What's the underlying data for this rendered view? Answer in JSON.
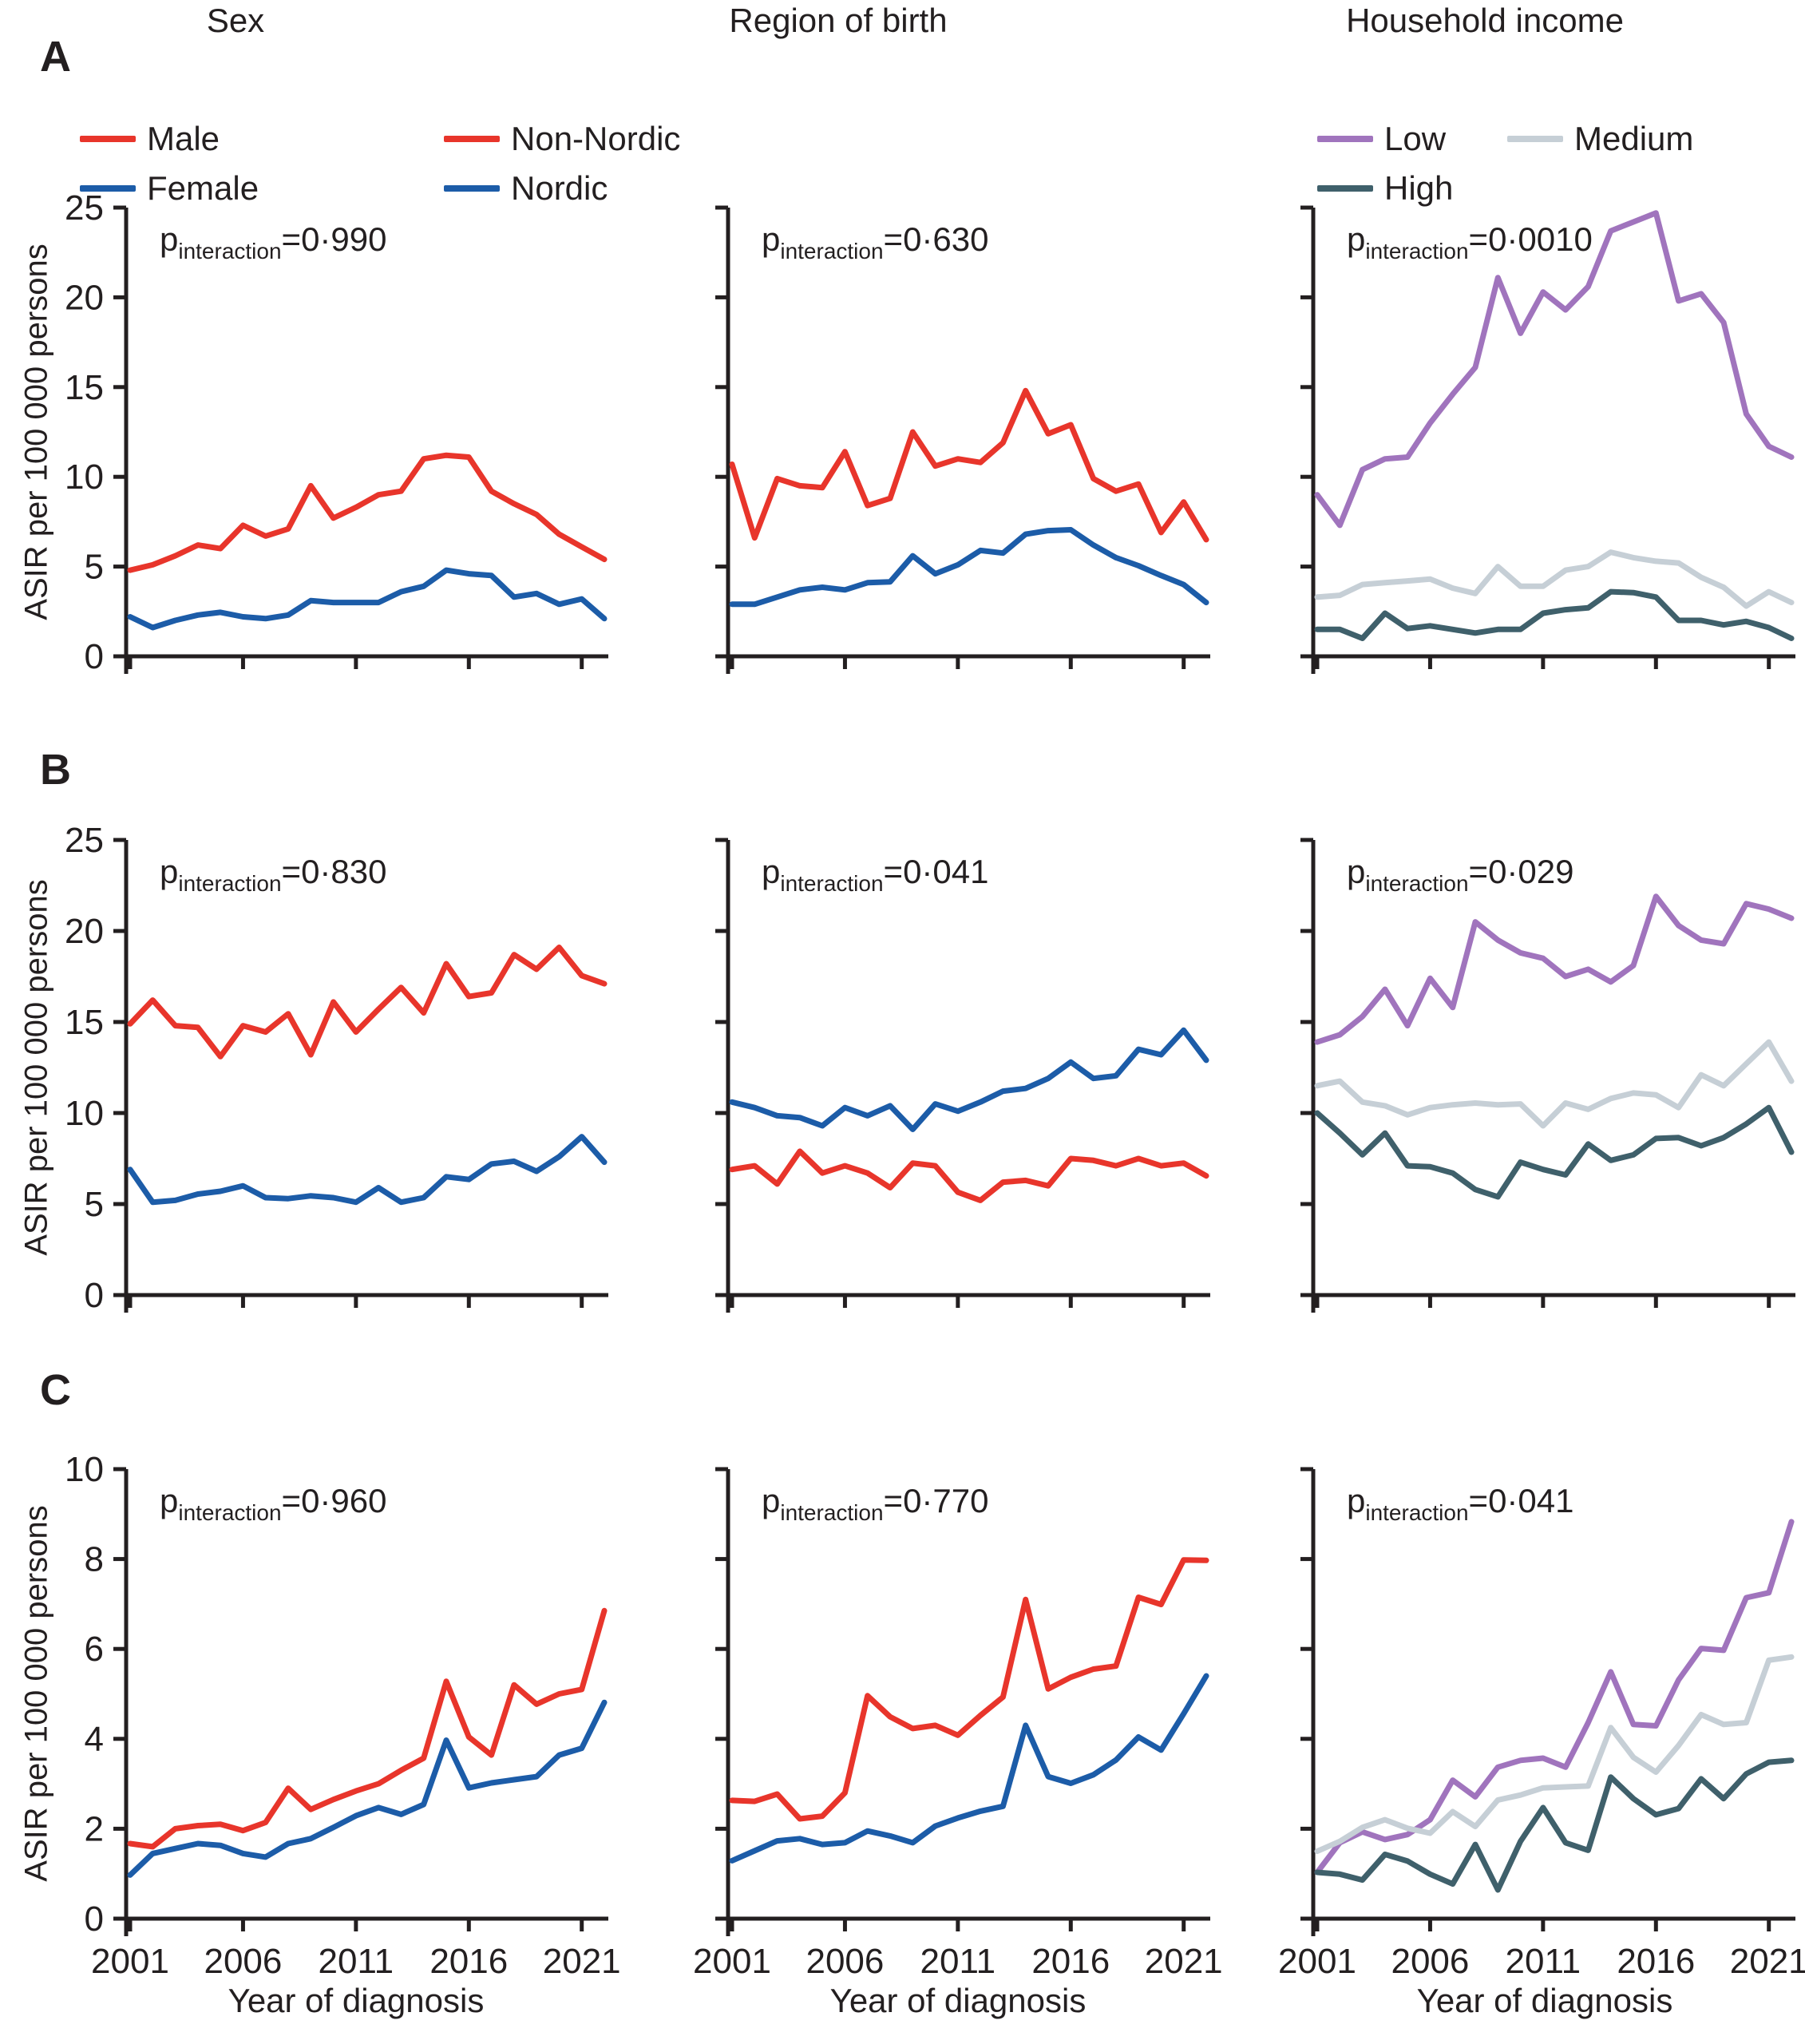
{
  "figure": {
    "column_titles": [
      "Sex",
      "Region of birth",
      "Household income"
    ],
    "row_labels": [
      "A",
      "B",
      "C"
    ],
    "y_axis_title": "ASIR per 100 000 persons",
    "x_axis_title": "Year of diagnosis",
    "p_symbol": "p",
    "p_subscript": "interaction",
    "colors": {
      "male_nonnordic_red": "#e8352b",
      "female_nordic_blue": "#1c5ca8",
      "income_low_purple": "#a074bd",
      "income_medium_gray": "#c6cfd6",
      "income_high_slate": "#3f606b",
      "axis_black": "#231f20"
    }
  },
  "chart_data": [
    {
      "type": "line",
      "panel": "A",
      "group": "Sex",
      "p_text": "=0·990",
      "x": [
        2001,
        2002,
        2003,
        2004,
        2005,
        2006,
        2007,
        2008,
        2009,
        2010,
        2011,
        2012,
        2013,
        2014,
        2015,
        2016,
        2017,
        2018,
        2019,
        2020,
        2021,
        2022
      ],
      "xticks": [
        2001,
        2006,
        2011,
        2016,
        2021
      ],
      "ylim": [
        0,
        25
      ],
      "yticks": [
        0,
        5,
        10,
        15,
        20,
        25
      ],
      "show_ytick_labels": true,
      "show_xtick_labels": false,
      "legend": true,
      "series": [
        {
          "name": "Male",
          "color": "#e8352b",
          "values": [
            4.8,
            5.1,
            5.6,
            6.2,
            6.0,
            7.3,
            6.7,
            7.1,
            9.5,
            7.7,
            8.3,
            9.0,
            9.2,
            11.0,
            11.2,
            11.1,
            9.2,
            8.5,
            7.9,
            6.8,
            6.1,
            5.4
          ]
        },
        {
          "name": "Female",
          "color": "#1c5ca8",
          "values": [
            2.2,
            1.6,
            2.0,
            2.3,
            2.45,
            2.2,
            2.1,
            2.3,
            3.1,
            3.0,
            3.0,
            3.0,
            3.6,
            3.9,
            4.8,
            4.6,
            4.5,
            3.3,
            3.5,
            2.9,
            3.2,
            2.1
          ]
        }
      ]
    },
    {
      "type": "line",
      "panel": "A",
      "group": "Region of birth",
      "p_text": "=0·630",
      "x": [
        2001,
        2002,
        2003,
        2004,
        2005,
        2006,
        2007,
        2008,
        2009,
        2010,
        2011,
        2012,
        2013,
        2014,
        2015,
        2016,
        2017,
        2018,
        2019,
        2020,
        2021,
        2022
      ],
      "xticks": [
        2001,
        2006,
        2011,
        2016,
        2021
      ],
      "ylim": [
        0,
        25
      ],
      "yticks": [
        0,
        5,
        10,
        15,
        20,
        25
      ],
      "show_ytick_labels": false,
      "show_xtick_labels": false,
      "legend": true,
      "series": [
        {
          "name": "Non-Nordic",
          "color": "#e8352b",
          "values": [
            10.7,
            6.6,
            9.9,
            9.5,
            9.4,
            11.4,
            8.4,
            8.8,
            12.5,
            10.6,
            11.0,
            10.8,
            11.9,
            14.8,
            12.4,
            12.9,
            9.9,
            9.2,
            9.6,
            6.9,
            8.6,
            6.5
          ]
        },
        {
          "name": "Nordic",
          "color": "#1c5ca8",
          "values": [
            2.9,
            2.9,
            3.3,
            3.7,
            3.85,
            3.7,
            4.1,
            4.15,
            5.6,
            4.6,
            5.1,
            5.9,
            5.75,
            6.8,
            7.0,
            7.05,
            6.2,
            5.5,
            5.05,
            4.5,
            4.0,
            3.0
          ]
        }
      ]
    },
    {
      "type": "line",
      "panel": "A",
      "group": "Household income",
      "p_text": "=0·0010",
      "x": [
        2001,
        2002,
        2003,
        2004,
        2005,
        2006,
        2007,
        2008,
        2009,
        2010,
        2011,
        2012,
        2013,
        2014,
        2015,
        2016,
        2017,
        2018,
        2019,
        2020,
        2021,
        2022
      ],
      "xticks": [
        2001,
        2006,
        2011,
        2016,
        2021
      ],
      "ylim": [
        0,
        25
      ],
      "yticks": [
        0,
        5,
        10,
        15,
        20,
        25
      ],
      "show_ytick_labels": false,
      "show_xtick_labels": false,
      "legend": true,
      "series": [
        {
          "name": "Low",
          "color": "#a074bd",
          "values": [
            9.0,
            7.3,
            10.4,
            11.0,
            11.1,
            13.0,
            14.6,
            16.1,
            21.1,
            18.0,
            20.3,
            19.3,
            20.6,
            23.7,
            24.2,
            24.7,
            19.8,
            20.2,
            18.6,
            13.5,
            11.7,
            11.1
          ]
        },
        {
          "name": "Medium",
          "color": "#c6cfd6",
          "values": [
            3.3,
            3.4,
            4.0,
            4.1,
            4.2,
            4.3,
            3.8,
            3.5,
            5.0,
            3.9,
            3.9,
            4.8,
            5.0,
            5.8,
            5.5,
            5.3,
            5.2,
            4.4,
            3.85,
            2.8,
            3.6,
            3.0
          ]
        },
        {
          "name": "High",
          "color": "#3f606b",
          "values": [
            1.5,
            1.5,
            1.0,
            2.4,
            1.55,
            1.7,
            1.5,
            1.3,
            1.5,
            1.5,
            2.4,
            2.6,
            2.7,
            3.6,
            3.55,
            3.3,
            2.0,
            2.0,
            1.75,
            1.95,
            1.6,
            1.0
          ]
        }
      ]
    },
    {
      "type": "line",
      "panel": "B",
      "group": "Sex",
      "p_text": "=0·830",
      "x": [
        2001,
        2002,
        2003,
        2004,
        2005,
        2006,
        2007,
        2008,
        2009,
        2010,
        2011,
        2012,
        2013,
        2014,
        2015,
        2016,
        2017,
        2018,
        2019,
        2020,
        2021,
        2022
      ],
      "xticks": [
        2001,
        2006,
        2011,
        2016,
        2021
      ],
      "ylim": [
        0,
        25
      ],
      "yticks": [
        0,
        5,
        10,
        15,
        20,
        25
      ],
      "show_ytick_labels": true,
      "show_xtick_labels": false,
      "legend": false,
      "series": [
        {
          "name": "Male",
          "color": "#e8352b",
          "values": [
            14.9,
            16.2,
            14.8,
            14.7,
            13.1,
            14.8,
            14.45,
            15.45,
            13.2,
            16.1,
            14.45,
            15.7,
            16.9,
            15.5,
            18.2,
            16.4,
            16.6,
            18.7,
            17.9,
            19.1,
            17.55,
            17.1
          ]
        },
        {
          "name": "Female",
          "color": "#1c5ca8",
          "values": [
            6.9,
            5.1,
            5.2,
            5.55,
            5.7,
            6.0,
            5.35,
            5.3,
            5.45,
            5.35,
            5.1,
            5.9,
            5.1,
            5.35,
            6.5,
            6.35,
            7.2,
            7.35,
            6.8,
            7.6,
            8.7,
            7.3
          ]
        }
      ]
    },
    {
      "type": "line",
      "panel": "B",
      "group": "Region of birth",
      "p_text": "=0·041",
      "x": [
        2001,
        2002,
        2003,
        2004,
        2005,
        2006,
        2007,
        2008,
        2009,
        2010,
        2011,
        2012,
        2013,
        2014,
        2015,
        2016,
        2017,
        2018,
        2019,
        2020,
        2021,
        2022
      ],
      "xticks": [
        2001,
        2006,
        2011,
        2016,
        2021
      ],
      "ylim": [
        0,
        25
      ],
      "yticks": [
        0,
        5,
        10,
        15,
        20,
        25
      ],
      "show_ytick_labels": false,
      "show_xtick_labels": false,
      "legend": false,
      "series": [
        {
          "name": "Non-Nordic",
          "color": "#e8352b",
          "values": [
            6.9,
            7.1,
            6.1,
            7.9,
            6.7,
            7.1,
            6.7,
            5.9,
            7.25,
            7.1,
            5.65,
            5.2,
            6.2,
            6.3,
            6.0,
            7.5,
            7.4,
            7.1,
            7.5,
            7.1,
            7.25,
            6.55
          ]
        },
        {
          "name": "Nordic",
          "color": "#1c5ca8",
          "values": [
            10.6,
            10.3,
            9.85,
            9.75,
            9.3,
            10.3,
            9.85,
            10.4,
            9.1,
            10.5,
            10.1,
            10.6,
            11.2,
            11.35,
            11.9,
            12.8,
            11.9,
            12.05,
            13.5,
            13.2,
            14.55,
            12.9
          ]
        }
      ]
    },
    {
      "type": "line",
      "panel": "B",
      "group": "Household income",
      "p_text": "=0·029",
      "x": [
        2001,
        2002,
        2003,
        2004,
        2005,
        2006,
        2007,
        2008,
        2009,
        2010,
        2011,
        2012,
        2013,
        2014,
        2015,
        2016,
        2017,
        2018,
        2019,
        2020,
        2021,
        2022
      ],
      "xticks": [
        2001,
        2006,
        2011,
        2016,
        2021
      ],
      "ylim": [
        0,
        25
      ],
      "yticks": [
        0,
        5,
        10,
        15,
        20,
        25
      ],
      "show_ytick_labels": false,
      "show_xtick_labels": false,
      "legend": false,
      "series": [
        {
          "name": "Low",
          "color": "#a074bd",
          "values": [
            13.9,
            14.3,
            15.3,
            16.8,
            14.8,
            17.4,
            15.8,
            20.5,
            19.5,
            18.8,
            18.5,
            17.5,
            17.9,
            17.2,
            18.1,
            21.9,
            20.3,
            19.5,
            19.3,
            21.5,
            21.2,
            20.7
          ]
        },
        {
          "name": "Medium",
          "color": "#c6cfd6",
          "values": [
            11.5,
            11.75,
            10.6,
            10.4,
            9.9,
            10.3,
            10.45,
            10.55,
            10.45,
            10.5,
            9.3,
            10.55,
            10.2,
            10.8,
            11.1,
            11.0,
            10.3,
            12.1,
            11.5,
            12.7,
            13.9,
            11.75
          ]
        },
        {
          "name": "High",
          "color": "#3f606b",
          "values": [
            10.0,
            8.9,
            7.7,
            8.9,
            7.1,
            7.05,
            6.7,
            5.8,
            5.4,
            7.3,
            6.9,
            6.6,
            8.3,
            7.4,
            7.7,
            8.6,
            8.65,
            8.2,
            8.65,
            9.4,
            10.3,
            7.85
          ]
        }
      ]
    },
    {
      "type": "line",
      "panel": "C",
      "group": "Sex",
      "p_text": "=0·960",
      "x": [
        2001,
        2002,
        2003,
        2004,
        2005,
        2006,
        2007,
        2008,
        2009,
        2010,
        2011,
        2012,
        2013,
        2014,
        2015,
        2016,
        2017,
        2018,
        2019,
        2020,
        2021,
        2022
      ],
      "xticks": [
        2001,
        2006,
        2011,
        2016,
        2021
      ],
      "ylim": [
        0,
        10
      ],
      "yticks": [
        0,
        2,
        4,
        6,
        8,
        10
      ],
      "show_ytick_labels": true,
      "show_xtick_labels": true,
      "legend": false,
      "series": [
        {
          "name": "Male",
          "color": "#e8352b",
          "values": [
            1.67,
            1.6,
            2.0,
            2.07,
            2.1,
            1.96,
            2.14,
            2.9,
            2.43,
            2.65,
            2.84,
            3.0,
            3.3,
            3.57,
            5.28,
            4.04,
            3.64,
            5.2,
            4.77,
            5.0,
            5.1,
            6.85
          ]
        },
        {
          "name": "Female",
          "color": "#1c5ca8",
          "values": [
            0.97,
            1.45,
            1.56,
            1.67,
            1.63,
            1.45,
            1.37,
            1.67,
            1.78,
            2.03,
            2.29,
            2.47,
            2.32,
            2.54,
            3.97,
            2.91,
            3.02,
            3.09,
            3.16,
            3.64,
            3.79,
            4.81
          ]
        }
      ]
    },
    {
      "type": "line",
      "panel": "C",
      "group": "Region of birth",
      "p_text": "=0·770",
      "x": [
        2001,
        2002,
        2003,
        2004,
        2005,
        2006,
        2007,
        2008,
        2009,
        2010,
        2011,
        2012,
        2013,
        2014,
        2015,
        2016,
        2017,
        2018,
        2019,
        2020,
        2021,
        2022
      ],
      "xticks": [
        2001,
        2006,
        2011,
        2016,
        2021
      ],
      "ylim": [
        0,
        10
      ],
      "yticks": [
        0,
        2,
        4,
        6,
        8,
        10
      ],
      "show_ytick_labels": false,
      "show_xtick_labels": true,
      "legend": false,
      "series": [
        {
          "name": "Non-Nordic",
          "color": "#e8352b",
          "values": [
            2.63,
            2.61,
            2.77,
            2.22,
            2.28,
            2.8,
            4.96,
            4.49,
            4.23,
            4.3,
            4.08,
            4.52,
            4.93,
            7.1,
            5.11,
            5.37,
            5.55,
            5.62,
            7.15,
            6.99,
            7.98,
            7.97
          ]
        },
        {
          "name": "Nordic",
          "color": "#1c5ca8",
          "values": [
            1.29,
            1.51,
            1.73,
            1.78,
            1.65,
            1.69,
            1.95,
            1.84,
            1.69,
            2.06,
            2.24,
            2.39,
            2.5,
            4.3,
            3.16,
            3.01,
            3.2,
            3.53,
            4.04,
            3.75,
            4.56,
            5.4
          ]
        }
      ]
    },
    {
      "type": "line",
      "panel": "C",
      "group": "Household income",
      "p_text": "=0·041",
      "x": [
        2001,
        2002,
        2003,
        2004,
        2005,
        2006,
        2007,
        2008,
        2009,
        2010,
        2011,
        2012,
        2013,
        2014,
        2015,
        2016,
        2017,
        2018,
        2019,
        2020,
        2021,
        2022
      ],
      "xticks": [
        2001,
        2006,
        2011,
        2016,
        2021
      ],
      "ylim": [
        0,
        10
      ],
      "yticks": [
        0,
        2,
        4,
        6,
        8,
        10
      ],
      "show_ytick_labels": false,
      "show_xtick_labels": true,
      "legend": false,
      "series": [
        {
          "name": "Low",
          "color": "#a074bd",
          "values": [
            1.03,
            1.69,
            1.93,
            1.76,
            1.87,
            2.2,
            3.08,
            2.71,
            3.37,
            3.52,
            3.57,
            3.37,
            4.36,
            5.49,
            4.32,
            4.29,
            5.31,
            6.01,
            5.97,
            7.14,
            7.25,
            8.83
          ]
        },
        {
          "name": "Medium",
          "color": "#c6cfd6",
          "values": [
            1.5,
            1.72,
            2.03,
            2.2,
            2.01,
            1.9,
            2.38,
            2.05,
            2.64,
            2.75,
            2.91,
            2.93,
            2.95,
            4.25,
            3.59,
            3.26,
            3.85,
            4.54,
            4.32,
            4.36,
            5.75,
            5.82
          ]
        },
        {
          "name": "High",
          "color": "#3f606b",
          "values": [
            1.03,
            0.99,
            0.86,
            1.43,
            1.28,
            0.99,
            0.77,
            1.65,
            0.64,
            1.72,
            2.47,
            1.69,
            1.52,
            3.15,
            2.67,
            2.31,
            2.45,
            3.11,
            2.67,
            3.22,
            3.48,
            3.52
          ]
        }
      ]
    }
  ]
}
